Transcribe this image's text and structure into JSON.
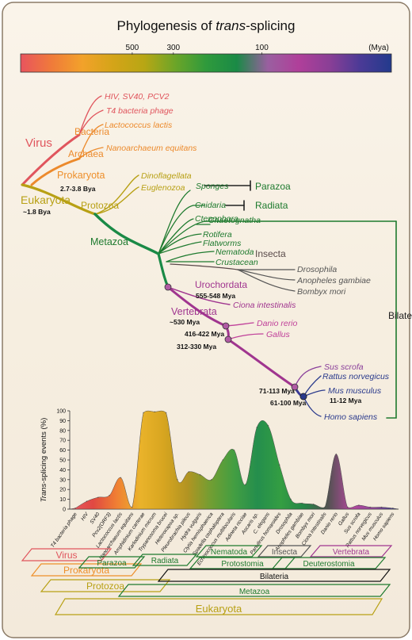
{
  "title": {
    "prefix": "Phylogenesis of ",
    "italic": "trans",
    "suffix": "-splicing"
  },
  "colorbar": {
    "ticks": [
      {
        "label": "500",
        "mya": 500
      },
      {
        "label": "300",
        "mya": 300
      },
      {
        "label": "100",
        "mya": 100
      }
    ],
    "unit": "(Mya)",
    "max_mya": 2000,
    "stops": [
      "#e8545e",
      "#f07a3a",
      "#f2a22a",
      "#d4a418",
      "#b8a614",
      "#6ca528",
      "#2f9a3c",
      "#1a8a46",
      "#9a5fa0",
      "#b03f9a",
      "#8a3f96",
      "#4a3a96",
      "#233a8c"
    ]
  },
  "tree": {
    "clades": [
      {
        "label": "Virus",
        "color": "#e0555d"
      },
      {
        "label": "Bacteria",
        "color": "#ec8a2c"
      },
      {
        "label": "Archaea",
        "color": "#ec8a2c"
      },
      {
        "label": "Prokaryota",
        "color": "#ee8f2a"
      },
      {
        "label": "Eukaryota",
        "color": "#b8a014"
      },
      {
        "label": "Protozoa",
        "color": "#b8a014"
      },
      {
        "label": "Metazoa",
        "color": "#1e7a2e"
      },
      {
        "label": "Insecta",
        "color": "#5a4a4a"
      },
      {
        "label": "Urochordata",
        "color": "#a0358f"
      },
      {
        "label": "Vertebrata",
        "color": "#a0358f"
      },
      {
        "label": "Parazoa",
        "color": "#1e7a2e"
      },
      {
        "label": "Radiata",
        "color": "#1e7a2e"
      },
      {
        "label": "Bilateria",
        "color": "#222222"
      }
    ],
    "dates": [
      {
        "label": "2.7-3.8 Bya"
      },
      {
        "label": "~1.8 Bya"
      },
      {
        "label": "555-548 Mya"
      },
      {
        "label": "~530 Mya"
      },
      {
        "label": "416-422 Mya"
      },
      {
        "label": "312-330 Mya"
      },
      {
        "label": "71-113 Mya"
      },
      {
        "label": "61-100 Mya"
      },
      {
        "label": "11-12 Mya"
      }
    ],
    "leaves": [
      {
        "label": "HIV, SV40, PCV2",
        "color": "#e0555d"
      },
      {
        "label": "T4 bacteria phage",
        "color": "#e0555d"
      },
      {
        "label": "Lactococcus lactis",
        "color": "#ec8a2c"
      },
      {
        "label": "Nanoarchaeum equitans",
        "color": "#ec8a2c"
      },
      {
        "label": "Dinoflagellata",
        "color": "#b8a014"
      },
      {
        "label": "Euglenozoa",
        "color": "#b8a014"
      },
      {
        "label": "Sponges",
        "color": "#1e7a2e"
      },
      {
        "label": "Cnidaria",
        "color": "#1e7a2e"
      },
      {
        "label": "Ctenophora",
        "color": "#1e7a2e"
      },
      {
        "label": "Chaetognatha",
        "color": "#1e7a2e"
      },
      {
        "label": "Rotifera",
        "color": "#1e7a2e"
      },
      {
        "label": "Flatworms",
        "color": "#1e7a2e"
      },
      {
        "label": "Nematoda",
        "color": "#1e7a2e"
      },
      {
        "label": "Crustacean",
        "color": "#1e7a2e"
      },
      {
        "label": "Drosophila",
        "color": "#555555"
      },
      {
        "label": "Anopheles gambiae",
        "color": "#555555"
      },
      {
        "label": "Bombyx mori",
        "color": "#555555"
      },
      {
        "label": "Ciona intestinalis",
        "color": "#a0358f"
      },
      {
        "label": "Danio rerio",
        "color": "#c0409a"
      },
      {
        "label": "Gallus",
        "color": "#c0409a"
      },
      {
        "label": "Sus scrofa",
        "color": "#8a3f9a"
      },
      {
        "label": "Rattus norvegicus",
        "color": "#2a3a8c"
      },
      {
        "label": "Mus musculus",
        "color": "#2a3a8c"
      },
      {
        "label": "Homo sapiens",
        "color": "#2a3a8c"
      }
    ]
  },
  "chart_data": {
    "type": "area",
    "ylabel_italic": "Trans",
    "ylabel_rest": "-splicing events (%)",
    "ylim": [
      0,
      100
    ],
    "yticks": [
      0,
      10,
      20,
      30,
      40,
      50,
      60,
      70,
      80,
      90,
      100
    ],
    "categories": [
      "T4 bacteria phage",
      "HIV",
      "SV40",
      "Pcv2(ORF3)",
      "Lactococcus lactis",
      "Nanoarchaeum equitans",
      "Amphidinium carterae",
      "Karlodinium micrum",
      "Trypanosoma brucei",
      "Heterocapsa sp.",
      "Pleurobrachia pileus",
      "Hydra vulgaris",
      "Clytia hemisphaerica",
      "Spadella cephaloptera",
      "Echinococcus multilocularis",
      "Adineta ricciae",
      "Ascaris sp.",
      "C. elegans",
      "Panulirus homaroides",
      "Drosophila",
      "Anopheles gambiae",
      "Bombyx mori",
      "Ciona intestinalis",
      "Danio rerio",
      "Gallus",
      "Sus scrofa",
      "Rattus norvegicus",
      "Mus musculus",
      "Homo sapiens"
    ],
    "values": [
      1,
      8,
      12,
      14,
      32,
      2,
      98,
      99,
      98,
      30,
      38,
      35,
      30,
      50,
      60,
      25,
      83,
      85,
      45,
      10,
      6,
      5,
      2,
      56,
      2,
      4,
      2,
      2,
      1
    ],
    "group_labels": [
      {
        "label": "Virus",
        "color": "#e0555d"
      },
      {
        "label": "Prokaryota",
        "color": "#ee8f2a"
      },
      {
        "label": "Protozoa",
        "color": "#b8a014"
      },
      {
        "label": "Parazoa",
        "color": "#1e7a2e"
      },
      {
        "label": "Radiata",
        "color": "#1e7a2e"
      },
      {
        "label": "Nematoda",
        "color": "#1e7a2e"
      },
      {
        "label": "Insecta",
        "color": "#555555"
      },
      {
        "label": "Vertebrata",
        "color": "#a0358f"
      },
      {
        "label": "Protostomia",
        "color": "#1e7a2e"
      },
      {
        "label": "Deuterostomia",
        "color": "#1e7a2e"
      },
      {
        "label": "Bilateria",
        "color": "#111111"
      },
      {
        "label": "Metazoa",
        "color": "#1e7a2e"
      },
      {
        "label": "Eukaryota",
        "color": "#b8a014"
      }
    ]
  }
}
